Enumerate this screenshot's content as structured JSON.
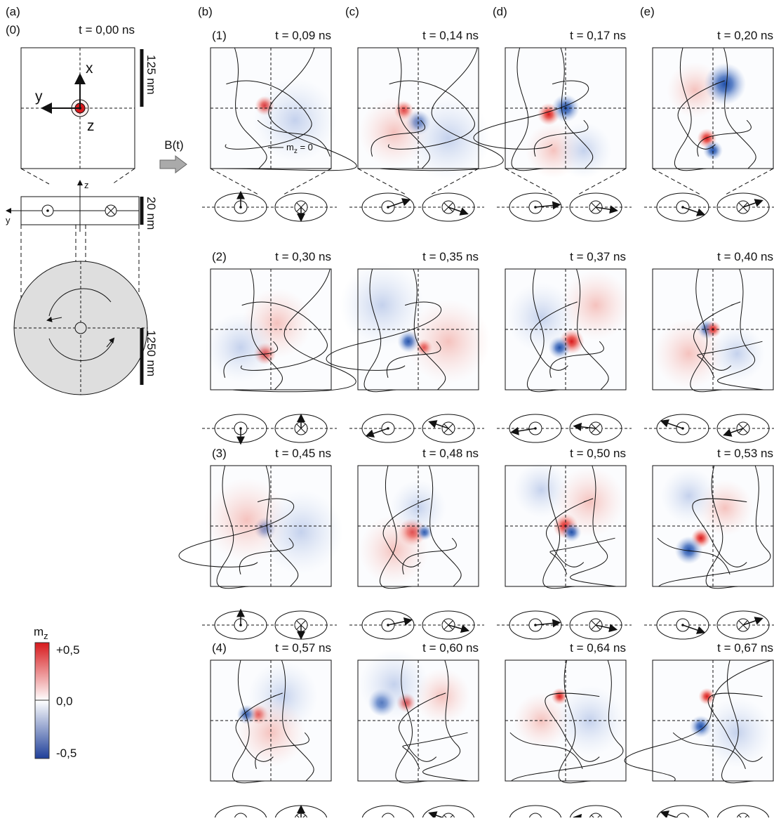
{
  "column_labels": [
    "(a)",
    "(b)",
    "(c)",
    "(d)",
    "(e)"
  ],
  "row_labels": [
    "(0)",
    "(1)",
    "(2)",
    "(3)",
    "(4)"
  ],
  "initial_time": "t = 0,00 ns",
  "times": [
    [
      "t = 0,09 ns",
      "t = 0,14 ns",
      "t = 0,17 ns",
      "t = 0,20 ns"
    ],
    [
      "t = 0,30 ns",
      "t = 0,35 ns",
      "t = 0,37 ns",
      "t = 0,40 ns"
    ],
    [
      "t = 0,45 ns",
      "t = 0,48 ns",
      "t = 0,50 ns",
      "t = 0,53 ns"
    ],
    [
      "t = 0,57 ns",
      "t = 0,60 ns",
      "t = 0,64 ns",
      "t = 0,67 ns"
    ]
  ],
  "axes": {
    "x": "x",
    "y": "y",
    "z": "z",
    "side_z": "z",
    "side_y": "y"
  },
  "scale_bars": [
    "125 nm",
    "20 nm",
    "1250 nm"
  ],
  "field_label": "B(t)",
  "contour_label": {
    "base": "m",
    "sub": "z",
    "rest": " = 0"
  },
  "colorbar": {
    "base": "m",
    "sub": "z",
    "max": "+0,5",
    "mid": "0,0",
    "min": "-0,5"
  }
}
